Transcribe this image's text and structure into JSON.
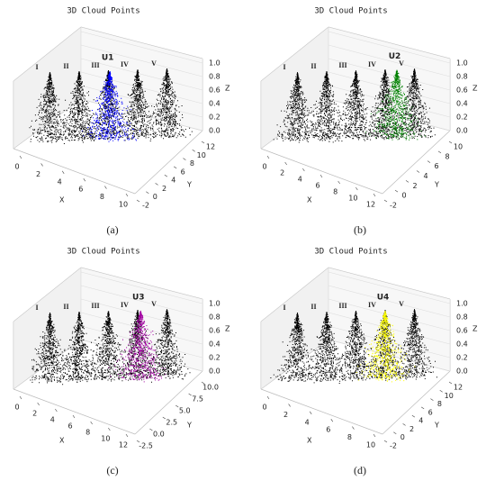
{
  "chart_data": [
    {
      "type": "scatter3d",
      "title": "3D Cloud Points",
      "caption": "(a)",
      "xlabel": "X",
      "ylabel": "Y",
      "zlabel": "Z",
      "xlim": [
        0,
        10
      ],
      "xticks": [
        0,
        2,
        4,
        6,
        8,
        10
      ],
      "ylim": [
        -2,
        12
      ],
      "yticks": [
        -2,
        0,
        2,
        4,
        6,
        8,
        10,
        12
      ],
      "zlim": [
        0,
        1
      ],
      "zticks": [
        {
          "value": 0,
          "label": "0.0"
        },
        0.2,
        0.4,
        0.6,
        0.8,
        {
          "value": 1,
          "label": "1.0"
        }
      ],
      "clouds": [
        {
          "name": "I",
          "color": "#000000"
        },
        {
          "name": "II",
          "color": "#000000"
        },
        {
          "name": "III",
          "color": "#000000"
        },
        {
          "name": "IV",
          "color": "#000000"
        },
        {
          "name": "V",
          "color": "#000000"
        }
      ],
      "highlight": {
        "name": "U1",
        "color": "#0000ff"
      }
    },
    {
      "type": "scatter3d",
      "title": "3D Cloud Points",
      "caption": "(b)",
      "xlabel": "X",
      "ylabel": "Y",
      "zlabel": "Z",
      "xlim": [
        0,
        12
      ],
      "xticks": [
        0,
        2,
        4,
        6,
        8,
        10,
        12
      ],
      "ylim": [
        -2,
        10
      ],
      "yticks": [
        -2,
        0,
        2,
        4,
        6,
        8,
        10
      ],
      "zlim": [
        0,
        1
      ],
      "zticks": [
        {
          "value": 0,
          "label": "0.0"
        },
        0.2,
        0.4,
        0.6,
        0.8,
        {
          "value": 1,
          "label": "1.0"
        }
      ],
      "clouds": [
        {
          "name": "I",
          "color": "#000000"
        },
        {
          "name": "II",
          "color": "#000000"
        },
        {
          "name": "III",
          "color": "#000000"
        },
        {
          "name": "IV",
          "color": "#000000"
        },
        {
          "name": "V",
          "color": "#000000"
        }
      ],
      "highlight": {
        "name": "U2",
        "color": "#008000"
      }
    },
    {
      "type": "scatter3d",
      "title": "3D Cloud Points",
      "caption": "(c)",
      "xlabel": "X",
      "ylabel": "Y",
      "zlabel": "Z",
      "xlim": [
        0,
        12
      ],
      "xticks": [
        0,
        2,
        4,
        6,
        8,
        10,
        12
      ],
      "ylim": [
        -2.5,
        10
      ],
      "yticks": [
        -2.5,
        {
          "value": 0,
          "label": "0.0"
        },
        2.5,
        {
          "value": 5,
          "label": "5.0"
        },
        7.5,
        {
          "value": 10,
          "label": "10.0"
        }
      ],
      "zlim": [
        0,
        1
      ],
      "zticks": [
        {
          "value": 0,
          "label": "0.0"
        },
        0.2,
        0.4,
        0.6,
        0.8,
        {
          "value": 1,
          "label": "1.0"
        }
      ],
      "clouds": [
        {
          "name": "I",
          "color": "#000000"
        },
        {
          "name": "II",
          "color": "#000000"
        },
        {
          "name": "III",
          "color": "#000000"
        },
        {
          "name": "IV",
          "color": "#000000"
        },
        {
          "name": "V",
          "color": "#000000"
        }
      ],
      "highlight": {
        "name": "U3",
        "color": "#a000a0"
      }
    },
    {
      "type": "scatter3d",
      "title": "3D Cloud Points",
      "caption": "(d)",
      "xlabel": "X",
      "ylabel": "Y",
      "zlabel": "Z",
      "xlim": [
        0,
        10
      ],
      "xticks": [
        0,
        2,
        4,
        6,
        8,
        10
      ],
      "ylim": [
        -2,
        12
      ],
      "yticks": [
        -2,
        0,
        2,
        4,
        6,
        8,
        10,
        12
      ],
      "zlim": [
        0,
        1
      ],
      "zticks": [
        {
          "value": 0,
          "label": "0.0"
        },
        0.2,
        0.4,
        0.6,
        0.8,
        {
          "value": 1,
          "label": "1.0"
        }
      ],
      "clouds": [
        {
          "name": "I",
          "color": "#000000"
        },
        {
          "name": "II",
          "color": "#000000"
        },
        {
          "name": "III",
          "color": "#000000"
        },
        {
          "name": "IV",
          "color": "#000000"
        },
        {
          "name": "V",
          "color": "#000000"
        }
      ],
      "highlight": {
        "name": "U4",
        "color": "#ffff00"
      }
    }
  ]
}
